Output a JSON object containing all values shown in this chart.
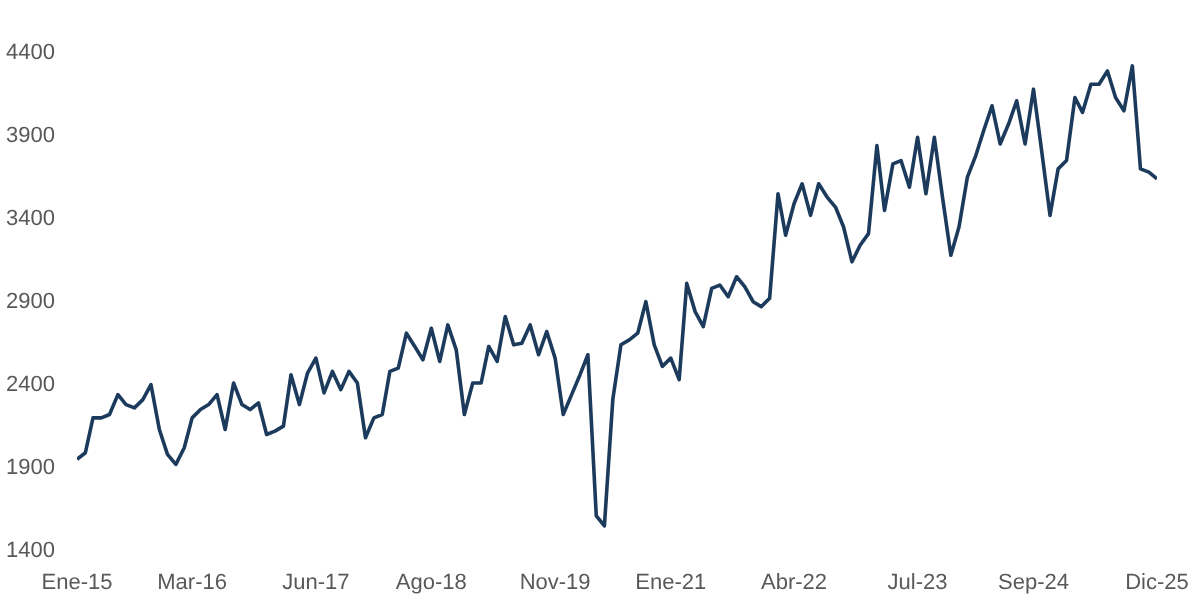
{
  "chart_data": {
    "type": "line",
    "x": [
      "2015-01",
      "2015-02",
      "2015-03",
      "2015-04",
      "2015-05",
      "2015-06",
      "2015-07",
      "2015-08",
      "2015-09",
      "2015-10",
      "2015-11",
      "2015-12",
      "2016-01",
      "2016-02",
      "2016-03",
      "2016-04",
      "2016-05",
      "2016-06",
      "2016-07",
      "2016-08",
      "2016-09",
      "2016-10",
      "2016-11",
      "2016-12",
      "2017-01",
      "2017-02",
      "2017-03",
      "2017-04",
      "2017-05",
      "2017-06",
      "2017-07",
      "2017-08",
      "2017-09",
      "2017-10",
      "2017-11",
      "2017-12",
      "2018-01",
      "2018-02",
      "2018-03",
      "2018-04",
      "2018-05",
      "2018-06",
      "2018-07",
      "2018-08",
      "2018-09",
      "2018-10",
      "2018-11",
      "2018-12",
      "2019-01",
      "2019-02",
      "2019-03",
      "2019-04",
      "2019-05",
      "2019-06",
      "2019-07",
      "2019-08",
      "2019-09",
      "2019-10",
      "2019-11",
      "2019-12",
      "2020-01",
      "2020-02",
      "2020-03",
      "2020-04",
      "2020-05",
      "2020-06",
      "2020-07",
      "2020-08",
      "2020-09",
      "2020-10",
      "2020-11",
      "2020-12",
      "2021-01",
      "2021-02",
      "2021-03",
      "2021-04",
      "2021-05",
      "2021-06",
      "2021-07",
      "2021-08",
      "2021-09",
      "2021-10",
      "2021-11",
      "2021-12",
      "2022-01",
      "2022-02",
      "2022-03",
      "2022-04",
      "2022-05",
      "2022-06",
      "2022-07",
      "2022-08",
      "2022-09",
      "2022-10",
      "2022-11",
      "2022-12",
      "2023-01",
      "2023-02",
      "2023-03",
      "2023-04",
      "2023-05",
      "2023-06",
      "2023-07",
      "2023-08",
      "2023-09",
      "2023-10",
      "2023-11",
      "2023-12",
      "2024-01",
      "2024-02",
      "2024-03",
      "2024-04",
      "2024-05",
      "2024-06",
      "2024-07",
      "2024-08",
      "2024-09",
      "2024-10",
      "2024-11",
      "2024-12",
      "2025-01",
      "2025-02",
      "2025-03",
      "2025-04",
      "2025-05",
      "2025-06",
      "2025-07",
      "2025-08",
      "2025-09",
      "2025-10",
      "2025-11",
      "2025-12"
    ],
    "series": [
      {
        "color": "#1b3a5c",
        "values": [
          1940,
          1980,
          2190,
          2190,
          2210,
          2330,
          2270,
          2250,
          2300,
          2390,
          2120,
          1970,
          1910,
          2010,
          2190,
          2240,
          2270,
          2330,
          2120,
          2400,
          2270,
          2240,
          2280,
          2090,
          2110,
          2140,
          2450,
          2270,
          2460,
          2550,
          2340,
          2470,
          2360,
          2470,
          2400,
          2070,
          2190,
          2210,
          2470,
          2490,
          2700,
          2620,
          2540,
          2730,
          2530,
          2750,
          2600,
          2210,
          2400,
          2400,
          2620,
          2530,
          2800,
          2630,
          2640,
          2750,
          2570,
          2710,
          2550,
          2210,
          2330,
          2450,
          2570,
          1600,
          1540,
          2300,
          2630,
          2660,
          2700,
          2890,
          2630,
          2500,
          2550,
          2420,
          3000,
          2830,
          2740,
          2970,
          2990,
          2920,
          3040,
          2980,
          2890,
          2860,
          2910,
          3540,
          3290,
          3480,
          3600,
          3410,
          3600,
          3520,
          3460,
          3340,
          3130,
          3230,
          3300,
          3830,
          3440,
          3720,
          3740,
          3580,
          3880,
          3540,
          3880,
          3520,
          3170,
          3340,
          3640,
          3770,
          3920,
          4070,
          3840,
          3960,
          4100,
          3840,
          4170,
          3800,
          3410,
          3690,
          3740,
          4120,
          4030,
          4200,
          4200,
          4280,
          4120,
          4040,
          4310,
          3690,
          3670,
          3630
        ]
      }
    ],
    "xlim": [
      "2015-01",
      "2025-12"
    ],
    "xticks": [
      {
        "value": "2015-01",
        "label": "Ene-15"
      },
      {
        "value": "2016-03",
        "label": "Mar-16"
      },
      {
        "value": "2017-06",
        "label": "Jun-17"
      },
      {
        "value": "2018-08",
        "label": "Ago-18"
      },
      {
        "value": "2019-11",
        "label": "Nov-19"
      },
      {
        "value": "2021-01",
        "label": "Ene-21"
      },
      {
        "value": "2022-04",
        "label": "Abr-22"
      },
      {
        "value": "2023-07",
        "label": "Jul-23"
      },
      {
        "value": "2024-09",
        "label": "Sep-24"
      },
      {
        "value": "2025-12",
        "label": "Dic-25"
      }
    ],
    "ylim": [
      1400,
      4400
    ],
    "yticks": [
      1400,
      1900,
      2400,
      2900,
      3400,
      3900,
      4400
    ],
    "grid": false,
    "marker": "none",
    "line_style": "solid"
  }
}
